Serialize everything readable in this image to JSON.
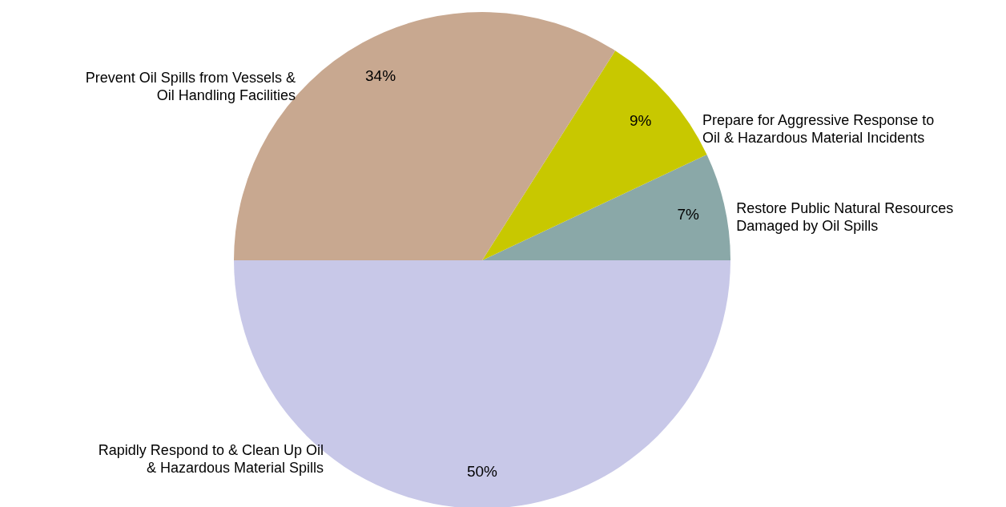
{
  "chart_data": {
    "type": "pie",
    "categories": [
      "Restore Public Natural Resources Damaged by Oil Spills",
      "Prepare for Aggressive Response to Oil & Hazardous Material Incidents",
      "Prevent Oil Spills from Vessels & Oil Handling Facilities",
      "Rapidly Respond to & Clean Up Oil & Hazardous Material Spills"
    ],
    "values": [
      7,
      9,
      34,
      50
    ],
    "value_labels": [
      "7%",
      "9%",
      "34%",
      "50%"
    ],
    "colors": [
      "#8aa8a8",
      "#c8c800",
      "#c8a890",
      "#c8c8e8"
    ]
  }
}
